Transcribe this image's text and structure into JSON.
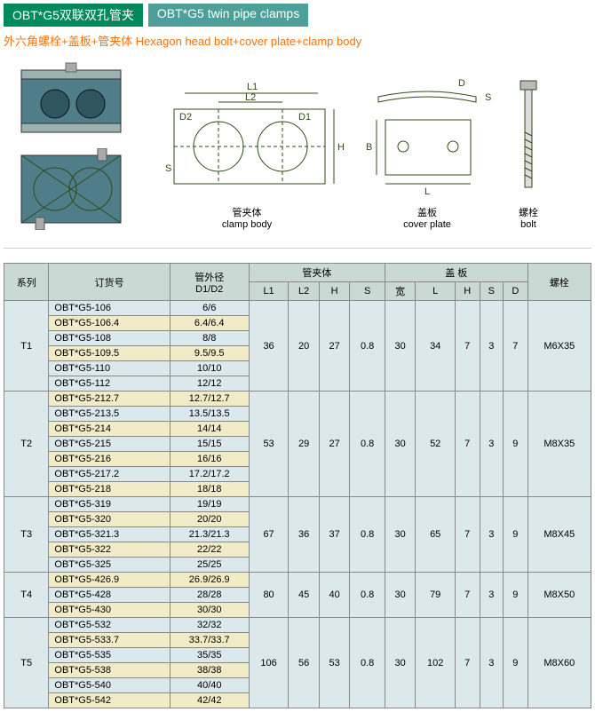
{
  "title": {
    "cn": "OBT*G5双联双孔管夹",
    "en": "OBT*G5 twin pipe clamps"
  },
  "subtitle": "外六角螺栓+盖板+管夹体 Hexagon head bolt+cover plate+clamp body",
  "fig_labels": {
    "clamp": "管夹体",
    "clamp_en": "clamp body",
    "cover": "盖板",
    "cover_en": "cover plate",
    "bolt": "螺栓",
    "bolt_en": "bolt"
  },
  "fig_dims": {
    "D1": "D1",
    "D2": "D2",
    "L1": "L1",
    "L2": "L2",
    "H": "H",
    "S": "S",
    "L": "L",
    "B": "B",
    "D": "D"
  },
  "headers": {
    "series": "系列",
    "order": "订货号",
    "dia": "管外径",
    "dia2": "D1/D2",
    "clamp": "管夹体",
    "cover": "盖 板",
    "bolt": "螺栓",
    "L1": "L1",
    "L2": "L2",
    "H": "H",
    "S": "S",
    "W": "宽",
    "L": "L",
    "cH": "H",
    "cS": "S",
    "D": "D"
  },
  "groups": [
    {
      "series": "T1",
      "L1": "36",
      "L2": "20",
      "H": "27",
      "S": "0.8",
      "W": "30",
      "L": "34",
      "cH": "7",
      "cS": "3",
      "D": "7",
      "bolt": "M6X35",
      "rows": [
        {
          "order": "OBT*G5-106",
          "dia": "6/6",
          "cls": "row-blue"
        },
        {
          "order": "OBT*G5-106.4",
          "dia": "6.4/6.4",
          "cls": "row-cream"
        },
        {
          "order": "OBT*G5-108",
          "dia": "8/8",
          "cls": "row-blue"
        },
        {
          "order": "OBT*G5-109.5",
          "dia": "9.5/9.5",
          "cls": "row-cream"
        },
        {
          "order": "OBT*G5-110",
          "dia": "10/10",
          "cls": "row-blue"
        },
        {
          "order": "OBT*G5-112",
          "dia": "12/12",
          "cls": "row-blue"
        }
      ]
    },
    {
      "series": "T2",
      "L1": "53",
      "L2": "29",
      "H": "27",
      "S": "0.8",
      "W": "30",
      "L": "52",
      "cH": "7",
      "cS": "3",
      "D": "9",
      "bolt": "M8X35",
      "rows": [
        {
          "order": "OBT*G5-212.7",
          "dia": "12.7/12.7",
          "cls": "row-cream"
        },
        {
          "order": "OBT*G5-213.5",
          "dia": "13.5/13.5",
          "cls": "row-blue"
        },
        {
          "order": "OBT*G5-214",
          "dia": "14/14",
          "cls": "row-cream"
        },
        {
          "order": "OBT*G5-215",
          "dia": "15/15",
          "cls": "row-blue"
        },
        {
          "order": "OBT*G5-216",
          "dia": "16/16",
          "cls": "row-cream"
        },
        {
          "order": "OBT*G5-217.2",
          "dia": "17.2/17.2",
          "cls": "row-blue"
        },
        {
          "order": "OBT*G5-218",
          "dia": "18/18",
          "cls": "row-cream"
        }
      ]
    },
    {
      "series": "T3",
      "L1": "67",
      "L2": "36",
      "H": "37",
      "S": "0.8",
      "W": "30",
      "L": "65",
      "cH": "7",
      "cS": "3",
      "D": "9",
      "bolt": "M8X45",
      "rows": [
        {
          "order": "OBT*G5-319",
          "dia": "19/19",
          "cls": "row-blue"
        },
        {
          "order": "OBT*G5-320",
          "dia": "20/20",
          "cls": "row-cream"
        },
        {
          "order": "OBT*G5-321.3",
          "dia": "21.3/21.3",
          "cls": "row-blue"
        },
        {
          "order": "OBT*G5-322",
          "dia": "22/22",
          "cls": "row-cream"
        },
        {
          "order": "OBT*G5-325",
          "dia": "25/25",
          "cls": "row-blue"
        }
      ]
    },
    {
      "series": "T4",
      "L1": "80",
      "L2": "45",
      "H": "40",
      "S": "0.8",
      "W": "30",
      "L": "79",
      "cH": "7",
      "cS": "3",
      "D": "9",
      "bolt": "M8X50",
      "rows": [
        {
          "order": "OBT*G5-426.9",
          "dia": "26.9/26.9",
          "cls": "row-cream"
        },
        {
          "order": "OBT*G5-428",
          "dia": "28/28",
          "cls": "row-blue"
        },
        {
          "order": "OBT*G5-430",
          "dia": "30/30",
          "cls": "row-cream"
        }
      ]
    },
    {
      "series": "T5",
      "L1": "106",
      "L2": "56",
      "H": "53",
      "S": "0.8",
      "W": "30",
      "L": "102",
      "cH": "7",
      "cS": "3",
      "D": "9",
      "bolt": "M8X60",
      "rows": [
        {
          "order": "OBT*G5-532",
          "dia": "32/32",
          "cls": "row-blue"
        },
        {
          "order": "OBT*G5-533.7",
          "dia": "33.7/33.7",
          "cls": "row-cream"
        },
        {
          "order": "OBT*G5-535",
          "dia": "35/35",
          "cls": "row-blue"
        },
        {
          "order": "OBT*G5-538",
          "dia": "38/38",
          "cls": "row-cream"
        },
        {
          "order": "OBT*G5-540",
          "dia": "40/40",
          "cls": "row-blue"
        },
        {
          "order": "OBT*G5-542",
          "dia": "42/42",
          "cls": "row-cream"
        }
      ]
    }
  ]
}
